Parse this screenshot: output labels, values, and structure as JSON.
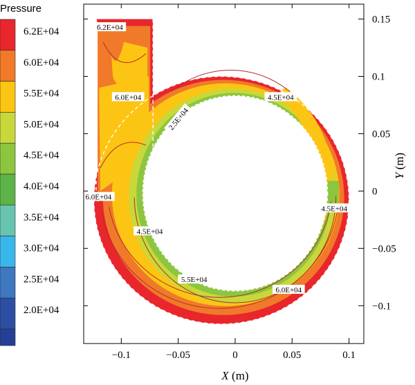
{
  "chart_data": {
    "type": "heatmap",
    "title": "",
    "legend": {
      "title": "Pressure",
      "placement": "left",
      "levels": [
        {
          "label": "6.2E+04",
          "color": "#e8262c"
        },
        {
          "label": "6.0E+04",
          "color": "#f07a2a"
        },
        {
          "label": "5.5E+04",
          "color": "#fdc513"
        },
        {
          "label": "5.0E+04",
          "color": "#c8d83a"
        },
        {
          "label": "4.5E+04",
          "color": "#8cc63f"
        },
        {
          "label": "4.0E+04",
          "color": "#5cb347"
        },
        {
          "label": "3.5E+04",
          "color": "#67c4ae"
        },
        {
          "label": "3.0E+04",
          "color": "#3ab7ea"
        },
        {
          "label": "2.5E+04",
          "color": "#3d78c1"
        },
        {
          "label": "2.0E+04",
          "color": "#2c4fa3"
        }
      ],
      "bottom_color": "#263f96"
    },
    "xaxis": {
      "label_var": "X",
      "label_unit": " (m)",
      "range": [
        -0.133,
        0.113
      ],
      "ticks": [
        -0.1,
        -0.05,
        0,
        0.05,
        0.1
      ],
      "tick_labels": [
        "−0.1",
        "−0.05",
        "0",
        "0.05",
        "0.1"
      ]
    },
    "yaxis": {
      "label_var": "Y",
      "label_unit": " (m)",
      "range": [
        -0.133,
        0.163
      ],
      "ticks": [
        -0.1,
        -0.05,
        0,
        0.05,
        0.1,
        0.15
      ],
      "tick_labels": [
        "−0.1",
        "−0.05",
        "0",
        "0.05",
        "0.1",
        "0.15"
      ],
      "side": "right"
    },
    "geometry": {
      "inner_radius_x": 0.08,
      "inner_radius_y": 0.084,
      "inner_center": [
        0.0,
        -0.002
      ],
      "outer_center": [
        -0.012,
        -0.008
      ],
      "outer_radius_x": 0.112,
      "outer_radius_y": 0.108,
      "inlet_x": [
        -0.122,
        -0.077
      ],
      "inlet_y_top": 0.15
    },
    "contour_annotations": [
      {
        "text": "6.2E+04",
        "x": -0.11,
        "y": 0.143,
        "rotate": 0
      },
      {
        "text": "6.0E+04",
        "x": -0.094,
        "y": 0.082,
        "rotate": 0
      },
      {
        "text": "2.5E+04",
        "x": -0.05,
        "y": 0.063,
        "rotate": -50
      },
      {
        "text": "4.5E+04",
        "x": 0.04,
        "y": 0.082,
        "rotate": 0
      },
      {
        "text": "6.0E+04",
        "x": -0.12,
        "y": -0.005,
        "rotate": 0
      },
      {
        "text": "4.5E+04",
        "x": 0.087,
        "y": -0.015,
        "rotate": 0
      },
      {
        "text": "4.5E+04",
        "x": -0.075,
        "y": -0.035,
        "rotate": 0
      },
      {
        "text": "5.5E+04",
        "x": -0.036,
        "y": -0.077,
        "rotate": 0
      },
      {
        "text": "6.0E+04",
        "x": 0.047,
        "y": -0.086,
        "rotate": 0
      }
    ]
  }
}
